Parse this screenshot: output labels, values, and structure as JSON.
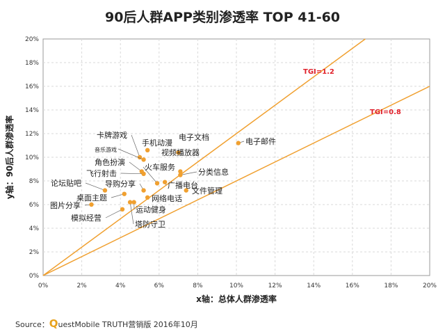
{
  "chart_data": {
    "type": "scatter",
    "title": "90后人群APP类别渗透率 TOP 41-60",
    "xlabel": "x轴：总体人群渗透率",
    "ylabel": "y轴：90后人群渗透率",
    "xlim": [
      0,
      20
    ],
    "ylim": [
      0,
      20
    ],
    "x_ticks": [
      "0%",
      "2%",
      "4%",
      "6%",
      "8%",
      "10%",
      "12%",
      "14%",
      "16%",
      "18%",
      "20%"
    ],
    "y_ticks": [
      "0%",
      "2%",
      "4%",
      "6%",
      "8%",
      "10%",
      "12%",
      "14%",
      "16%",
      "18%",
      "20%"
    ],
    "grid": true,
    "point_color": "#f0a030",
    "line_color": "#f0a030",
    "label_color_lines": "#e0202a",
    "reference_lines": [
      {
        "label": "TGI=1.2",
        "slope": 1.2
      },
      {
        "label": "TGI=0.8",
        "slope": 0.8
      }
    ],
    "points": [
      {
        "label": "电子邮件",
        "x": 10.1,
        "y": 11.2
      },
      {
        "label": "电子文档",
        "x": 7.0,
        "y": 10.4
      },
      {
        "label": "视频播放器",
        "x": 7.1,
        "y": 8.8
      },
      {
        "label": "分类信息",
        "x": 7.1,
        "y": 8.5
      },
      {
        "label": "文件管理",
        "x": 7.4,
        "y": 7.2
      },
      {
        "label": "广播电台",
        "x": 6.3,
        "y": 7.9
      },
      {
        "label": "火车服务",
        "x": 5.9,
        "y": 7.8
      },
      {
        "label": "网络电话",
        "x": 5.4,
        "y": 6.6
      },
      {
        "label": "手机动漫",
        "x": 5.4,
        "y": 10.6
      },
      {
        "label": "卡牌游戏",
        "x": 5.0,
        "y": 10.0
      },
      {
        "label": "音乐游戏",
        "x": 5.2,
        "y": 9.8
      },
      {
        "label": "角色扮演",
        "x": 5.1,
        "y": 8.8
      },
      {
        "label": "飞行射击",
        "x": 5.2,
        "y": 8.6
      },
      {
        "label": "导购分享",
        "x": 5.2,
        "y": 7.2
      },
      {
        "label": "论坛贴吧",
        "x": 3.2,
        "y": 7.2
      },
      {
        "label": "桌面主题",
        "x": 4.2,
        "y": 6.9
      },
      {
        "label": "运动健身",
        "x": 4.7,
        "y": 6.2
      },
      {
        "label": "图片分享",
        "x": 2.5,
        "y": 6.0
      },
      {
        "label": "模拟经营",
        "x": 4.1,
        "y": 5.6
      },
      {
        "label": "塔防守卫",
        "x": 4.5,
        "y": 6.2
      }
    ]
  },
  "source": {
    "prefix": "Source：",
    "brand_q": "Q",
    "brand_rest": "uestMobile TRUTH营销版 2016年10月"
  }
}
